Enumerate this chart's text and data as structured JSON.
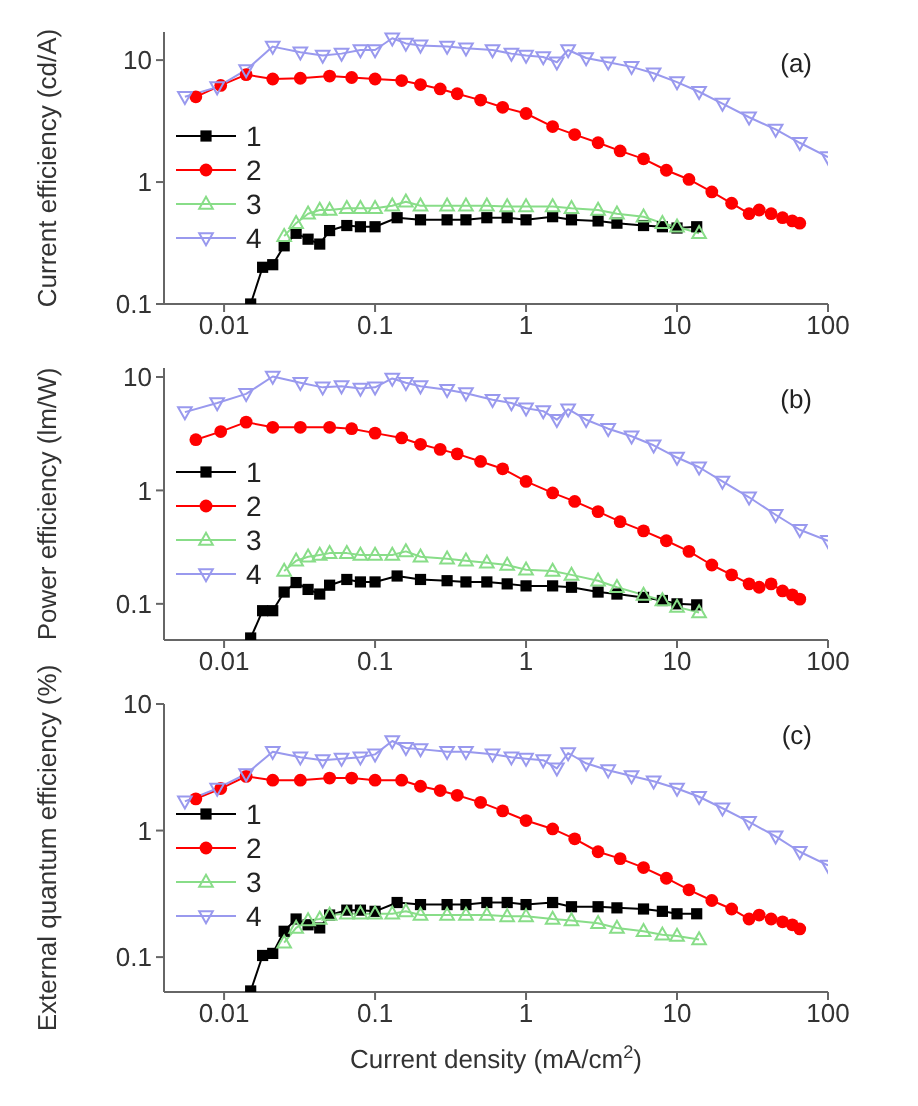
{
  "chart_data": [
    {
      "type": "line",
      "log": "xy",
      "xlim": [
        0.004,
        100
      ],
      "ylim": [
        0.1,
        17
      ],
      "xticks": [
        0.01,
        0.1,
        1,
        10,
        100
      ],
      "yticks": [
        0.1,
        1,
        10
      ],
      "ylabel": "Current efficiency (cd/A)",
      "annotations": [
        "(a)"
      ],
      "legend": "left",
      "line_style": "solid",
      "series": [
        {
          "name": "1",
          "color": "#000000",
          "marker": "square",
          "x": [
            0.015,
            0.018,
            0.021,
            0.025,
            0.03,
            0.036,
            0.043,
            0.05,
            0.065,
            0.08,
            0.1,
            0.14,
            0.2,
            0.3,
            0.4,
            0.55,
            0.75,
            1.0,
            1.5,
            2,
            3,
            4,
            6,
            8,
            10,
            13.5
          ],
          "values": [
            0.1,
            0.2,
            0.21,
            0.3,
            0.38,
            0.34,
            0.31,
            0.4,
            0.44,
            0.43,
            0.43,
            0.51,
            0.49,
            0.49,
            0.49,
            0.51,
            0.51,
            0.49,
            0.52,
            0.49,
            0.48,
            0.46,
            0.44,
            0.43,
            0.42,
            0.43
          ]
        },
        {
          "name": "2",
          "color": "#ff0000",
          "marker": "circle",
          "x": [
            0.0065,
            0.0095,
            0.014,
            0.021,
            0.032,
            0.05,
            0.07,
            0.1,
            0.15,
            0.2,
            0.27,
            0.35,
            0.5,
            0.7,
            1.0,
            1.5,
            2.1,
            3,
            4.2,
            6,
            8.5,
            12,
            17,
            23,
            30,
            35,
            42,
            50,
            58,
            65
          ],
          "values": [
            5.0,
            6.2,
            7.6,
            7.0,
            7.1,
            7.4,
            7.2,
            7.0,
            6.8,
            6.3,
            5.8,
            5.3,
            4.7,
            4.1,
            3.65,
            2.85,
            2.45,
            2.1,
            1.8,
            1.55,
            1.25,
            1.05,
            0.83,
            0.67,
            0.55,
            0.59,
            0.55,
            0.51,
            0.48,
            0.46
          ]
        },
        {
          "name": "3",
          "color": "#88dd88",
          "marker": "triangle",
          "x": [
            0.025,
            0.03,
            0.036,
            0.043,
            0.05,
            0.065,
            0.08,
            0.1,
            0.13,
            0.16,
            0.2,
            0.3,
            0.4,
            0.55,
            0.75,
            1.0,
            1.5,
            2,
            3,
            4,
            6,
            8,
            10,
            14
          ],
          "values": [
            0.36,
            0.46,
            0.55,
            0.59,
            0.59,
            0.61,
            0.61,
            0.61,
            0.64,
            0.69,
            0.64,
            0.64,
            0.64,
            0.64,
            0.63,
            0.63,
            0.63,
            0.61,
            0.59,
            0.55,
            0.52,
            0.46,
            0.43,
            0.38
          ]
        },
        {
          "name": "4",
          "color": "#9999ee",
          "marker": "triangle-down",
          "x": [
            0.0055,
            0.009,
            0.014,
            0.021,
            0.032,
            0.045,
            0.06,
            0.08,
            0.1,
            0.13,
            0.16,
            0.2,
            0.3,
            0.4,
            0.6,
            0.8,
            1.0,
            1.3,
            1.6,
            1.9,
            2.5,
            3.5,
            5,
            7,
            10,
            14,
            20,
            30,
            45,
            65,
            100
          ],
          "values": [
            5.0,
            6.0,
            8.3,
            12.9,
            11.6,
            10.9,
            11.3,
            12.1,
            12.1,
            15.1,
            13.7,
            13.2,
            12.9,
            12.5,
            12.1,
            11.3,
            10.9,
            10.6,
            9.6,
            12.1,
            10.4,
            9.6,
            8.8,
            7.8,
            6.6,
            5.5,
            4.4,
            3.4,
            2.7,
            2.1,
            1.6
          ]
        }
      ]
    },
    {
      "type": "line",
      "log": "xy",
      "xlim": [
        0.004,
        100
      ],
      "ylim": [
        0.048,
        12
      ],
      "xticks": [
        0.01,
        0.1,
        1,
        10,
        100
      ],
      "yticks": [
        0.1,
        1,
        10
      ],
      "ylabel": "Power efficiency (lm/W)",
      "annotations": [
        "(b)"
      ],
      "legend": "left",
      "line_style": "solid",
      "series": [
        {
          "name": "1",
          "color": "#000000",
          "marker": "square",
          "x": [
            0.015,
            0.018,
            0.021,
            0.025,
            0.03,
            0.036,
            0.043,
            0.05,
            0.065,
            0.08,
            0.1,
            0.14,
            0.2,
            0.3,
            0.4,
            0.55,
            0.75,
            1.0,
            1.5,
            2,
            3,
            4,
            6,
            8,
            10,
            13.5
          ],
          "values": [
            0.05,
            0.087,
            0.087,
            0.127,
            0.154,
            0.134,
            0.122,
            0.146,
            0.164,
            0.156,
            0.156,
            0.176,
            0.164,
            0.16,
            0.156,
            0.156,
            0.15,
            0.144,
            0.144,
            0.14,
            0.127,
            0.122,
            0.114,
            0.107,
            0.1,
            0.098
          ]
        },
        {
          "name": "2",
          "color": "#ff0000",
          "marker": "circle",
          "x": [
            0.0065,
            0.0095,
            0.014,
            0.021,
            0.032,
            0.05,
            0.07,
            0.1,
            0.15,
            0.2,
            0.27,
            0.35,
            0.5,
            0.7,
            1.0,
            1.5,
            2.1,
            3,
            4.2,
            6,
            8.5,
            12,
            17,
            23,
            30,
            35,
            42,
            50,
            58,
            65
          ],
          "values": [
            2.8,
            3.3,
            4.0,
            3.6,
            3.6,
            3.6,
            3.5,
            3.2,
            2.9,
            2.55,
            2.3,
            2.1,
            1.8,
            1.55,
            1.2,
            0.95,
            0.8,
            0.65,
            0.53,
            0.44,
            0.36,
            0.29,
            0.22,
            0.18,
            0.15,
            0.14,
            0.15,
            0.13,
            0.12,
            0.11
          ]
        },
        {
          "name": "3",
          "color": "#88dd88",
          "marker": "triangle",
          "x": [
            0.025,
            0.03,
            0.036,
            0.043,
            0.05,
            0.065,
            0.08,
            0.1,
            0.13,
            0.16,
            0.2,
            0.3,
            0.4,
            0.55,
            0.75,
            1.0,
            1.5,
            2,
            3,
            4,
            6,
            8,
            10,
            14
          ],
          "values": [
            0.195,
            0.24,
            0.26,
            0.27,
            0.28,
            0.28,
            0.27,
            0.27,
            0.27,
            0.29,
            0.26,
            0.25,
            0.24,
            0.23,
            0.22,
            0.2,
            0.195,
            0.18,
            0.16,
            0.14,
            0.12,
            0.107,
            0.094,
            0.084
          ]
        },
        {
          "name": "4",
          "color": "#9999ee",
          "marker": "triangle-down",
          "x": [
            0.0055,
            0.009,
            0.014,
            0.021,
            0.032,
            0.045,
            0.06,
            0.08,
            0.1,
            0.13,
            0.16,
            0.2,
            0.3,
            0.4,
            0.6,
            0.8,
            1.0,
            1.3,
            1.6,
            1.9,
            2.5,
            3.5,
            5,
            7,
            10,
            14,
            20,
            30,
            45,
            65,
            100
          ],
          "values": [
            4.9,
            5.9,
            7.1,
            10.1,
            8.9,
            8.1,
            8.3,
            7.9,
            8.1,
            9.7,
            8.9,
            8.3,
            7.7,
            7.2,
            6.3,
            5.9,
            5.3,
            5.0,
            4.2,
            5.2,
            4.2,
            3.5,
            3.0,
            2.5,
            1.95,
            1.6,
            1.2,
            0.87,
            0.61,
            0.45,
            0.36
          ]
        }
      ]
    },
    {
      "type": "line",
      "log": "xy",
      "xlim": [
        0.004,
        100
      ],
      "ylim": [
        0.053,
        10
      ],
      "xticks": [
        0.01,
        0.1,
        1,
        10,
        100
      ],
      "yticks": [
        0.1,
        1,
        10
      ],
      "xlabel": "Current density (mA/cm$^{2}$)",
      "ylabel": "External quantum efficiency (%)",
      "annotations": [
        "(c)"
      ],
      "legend": "left",
      "line_style": "solid",
      "series": [
        {
          "name": "1",
          "color": "#000000",
          "marker": "square",
          "x": [
            0.015,
            0.018,
            0.021,
            0.025,
            0.03,
            0.036,
            0.043,
            0.05,
            0.065,
            0.08,
            0.1,
            0.14,
            0.2,
            0.3,
            0.4,
            0.55,
            0.75,
            1.0,
            1.5,
            2,
            3,
            4,
            6,
            8,
            10,
            13.5
          ],
          "values": [
            0.054,
            0.103,
            0.107,
            0.16,
            0.2,
            0.18,
            0.17,
            0.215,
            0.235,
            0.235,
            0.23,
            0.27,
            0.26,
            0.26,
            0.26,
            0.27,
            0.27,
            0.26,
            0.27,
            0.25,
            0.25,
            0.245,
            0.24,
            0.23,
            0.22,
            0.22
          ]
        },
        {
          "name": "2",
          "color": "#ff0000",
          "marker": "circle",
          "x": [
            0.0065,
            0.0095,
            0.014,
            0.021,
            0.032,
            0.05,
            0.07,
            0.1,
            0.15,
            0.2,
            0.27,
            0.35,
            0.5,
            0.7,
            1.0,
            1.5,
            2.1,
            3,
            4.2,
            6,
            8.5,
            12,
            17,
            23,
            30,
            35,
            42,
            50,
            58,
            65
          ],
          "values": [
            1.78,
            2.15,
            2.68,
            2.5,
            2.5,
            2.6,
            2.6,
            2.5,
            2.5,
            2.24,
            2.07,
            1.9,
            1.67,
            1.43,
            1.2,
            1.03,
            0.86,
            0.68,
            0.6,
            0.51,
            0.42,
            0.34,
            0.28,
            0.24,
            0.2,
            0.215,
            0.2,
            0.19,
            0.18,
            0.167
          ]
        },
        {
          "name": "3",
          "color": "#88dd88",
          "marker": "triangle",
          "x": [
            0.025,
            0.03,
            0.036,
            0.043,
            0.05,
            0.065,
            0.08,
            0.1,
            0.13,
            0.16,
            0.2,
            0.3,
            0.4,
            0.55,
            0.75,
            1.0,
            1.5,
            2,
            3,
            4,
            6,
            8,
            10,
            14
          ],
          "values": [
            0.13,
            0.17,
            0.195,
            0.2,
            0.215,
            0.22,
            0.22,
            0.22,
            0.22,
            0.23,
            0.215,
            0.215,
            0.215,
            0.215,
            0.21,
            0.21,
            0.2,
            0.195,
            0.185,
            0.17,
            0.16,
            0.15,
            0.147,
            0.138
          ]
        },
        {
          "name": "4",
          "color": "#9999ee",
          "marker": "triangle-down",
          "x": [
            0.0055,
            0.009,
            0.014,
            0.021,
            0.032,
            0.045,
            0.06,
            0.08,
            0.1,
            0.13,
            0.16,
            0.2,
            0.3,
            0.4,
            0.6,
            0.8,
            1.0,
            1.3,
            1.6,
            1.9,
            2.5,
            3.5,
            5,
            7,
            10,
            14,
            20,
            30,
            45,
            65,
            100
          ],
          "values": [
            1.7,
            2.15,
            2.8,
            4.2,
            3.8,
            3.6,
            3.7,
            3.8,
            4.0,
            5.1,
            4.5,
            4.4,
            4.2,
            4.2,
            4.0,
            3.8,
            3.7,
            3.6,
            3.1,
            4.1,
            3.4,
            3.0,
            2.7,
            2.45,
            2.15,
            1.85,
            1.5,
            1.17,
            0.9,
            0.68,
            0.53
          ]
        }
      ]
    }
  ]
}
